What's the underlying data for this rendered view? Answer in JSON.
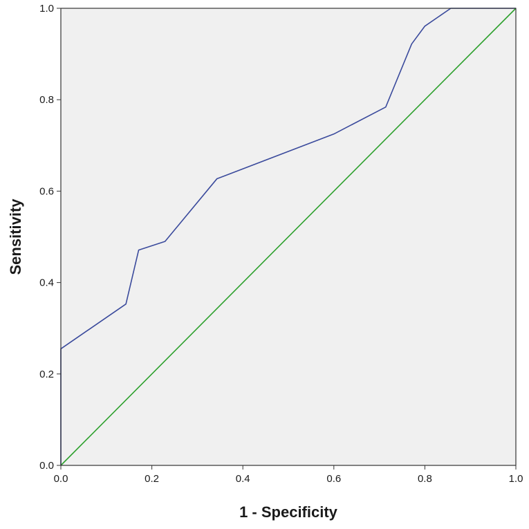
{
  "chart_data": {
    "type": "line",
    "title": "",
    "xlabel": "1 - Specificity",
    "ylabel": "Sensitivity",
    "xlim": [
      0,
      1
    ],
    "ylim": [
      0,
      1
    ],
    "x_ticks": [
      "0.0",
      "0.2",
      "0.4",
      "0.6",
      "0.8",
      "1.0"
    ],
    "y_ticks": [
      "0.0",
      "0.2",
      "0.4",
      "0.6",
      "0.8",
      "1.0"
    ],
    "grid": false,
    "legend": "none",
    "background_color": "#f0f0f0",
    "series": [
      {
        "color": "#3a4a9c",
        "x": [
          0.0,
          0.0,
          0.143,
          0.171,
          0.229,
          0.343,
          0.6,
          0.714,
          0.771,
          0.8,
          0.857,
          1.0
        ],
        "y": [
          0.0,
          0.255,
          0.353,
          0.471,
          0.49,
          0.627,
          0.725,
          0.784,
          0.922,
          0.961,
          1.0,
          1.0
        ]
      },
      {
        "color": "#2ca02c",
        "x": [
          0.0,
          1.0
        ],
        "y": [
          0.0,
          1.0
        ]
      }
    ]
  }
}
